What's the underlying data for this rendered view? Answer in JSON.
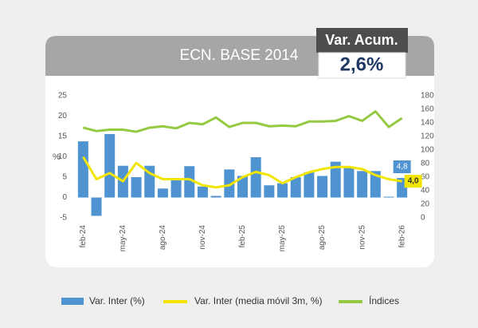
{
  "header": {
    "title": "ECN. BASE 2014",
    "badge_label": "Var. Acum.",
    "badge_value": "2,6%"
  },
  "chart_data": {
    "type": "bar_line",
    "y_label": "%",
    "categories": [
      "feb-24",
      null,
      null,
      "may-24",
      null,
      null,
      "ago-24",
      null,
      null,
      "nov-24",
      null,
      null,
      "feb-25",
      null,
      null,
      "may-25",
      null,
      null,
      "ago-25",
      null,
      null,
      "nov-25",
      null,
      null,
      "feb-26"
    ],
    "series": [
      {
        "name": "Var. Inter (%)",
        "type": "bar",
        "color": "#4f93d0",
        "values": [
          13.8,
          -4.5,
          15.6,
          7.8,
          5,
          7.8,
          2.2,
          4.5,
          7.7,
          2.7,
          0.4,
          6.9,
          5.3,
          9.9,
          3,
          3.5,
          5,
          6.2,
          5.3,
          8.8,
          7.3,
          6.5,
          6.5,
          0.2,
          4.8
        ],
        "value_labels": [
          null,
          null,
          null,
          null,
          null,
          null,
          null,
          null,
          null,
          null,
          null,
          null,
          null,
          null,
          null,
          null,
          null,
          null,
          null,
          null,
          null,
          null,
          null,
          null,
          "4,8"
        ]
      },
      {
        "name": "Var. Inter (media móvil 3m, %)",
        "type": "line",
        "color": "#f2e500",
        "values": [
          10,
          4.5,
          6,
          4,
          8.5,
          6,
          4.5,
          4.5,
          4.5,
          3,
          2.5,
          3,
          5,
          6.3,
          5.5,
          3.5,
          5,
          6.2,
          7,
          7.5,
          7.5,
          7,
          5.5,
          4.5,
          4
        ],
        "value_labels": [
          null,
          null,
          null,
          null,
          null,
          null,
          null,
          null,
          null,
          null,
          null,
          null,
          null,
          null,
          null,
          null,
          null,
          null,
          null,
          null,
          null,
          null,
          null,
          null,
          "4,0"
        ]
      },
      {
        "name": "Índices",
        "type": "line",
        "axis": "y2",
        "color": "#95c941",
        "values": [
          133,
          128,
          130,
          130,
          127,
          133,
          135,
          132,
          140,
          138,
          148,
          134,
          140,
          140,
          135,
          136,
          135,
          142,
          142,
          143,
          150,
          143,
          157,
          134,
          147
        ]
      }
    ],
    "ylim": [
      -5,
      25
    ],
    "yticks": [
      -5,
      0,
      5,
      10,
      15,
      20,
      25
    ],
    "y2lim": [
      0,
      180
    ],
    "y2ticks": [
      0,
      20,
      40,
      60,
      80,
      100,
      120,
      140,
      160,
      180
    ]
  }
}
